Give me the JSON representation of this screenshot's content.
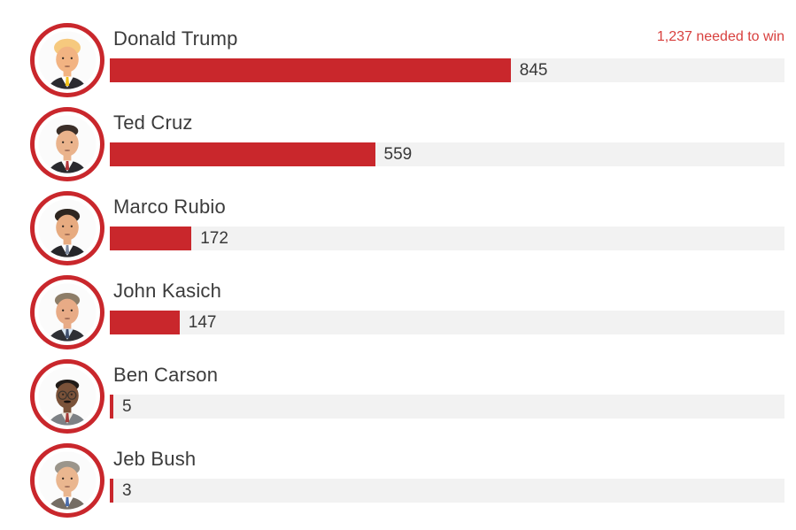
{
  "colors": {
    "background": "#ffffff",
    "bar": "#c9272c",
    "track": "#f2f2f2",
    "ring": "#c9272c",
    "name_text": "#3b3b3b",
    "value_text": "#383838",
    "annotation_text": "#d8403e"
  },
  "annotation": {
    "label": "1,237 needed to win"
  },
  "chart_data": {
    "type": "bar",
    "orientation": "horizontal",
    "title": "",
    "categories": [
      "Donald Trump",
      "Ted Cruz",
      "Marco Rubio",
      "John Kasich",
      "Ben Carson",
      "Jeb Bush"
    ],
    "values": [
      845,
      559,
      172,
      147,
      5,
      3
    ],
    "value_labels": [
      "845",
      "559",
      "172",
      "147",
      "5",
      "3"
    ],
    "annotation": "1,237 needed to win",
    "threshold_to_win": 1237,
    "xlim": [
      0,
      1422
    ],
    "grid": false,
    "legend": "none",
    "bar_color": "#c9272c",
    "track_color": "#f2f2f2"
  },
  "rows": [
    {
      "name": "Donald Trump",
      "value": 845,
      "value_label": "845",
      "avatar": {
        "icon": "avatar-donald-trump",
        "skin": "#f2b382",
        "hair": "#f6c97e",
        "hair_style": "combover",
        "suit": "#2b2b30",
        "shirt": "#ffffff",
        "tie": "#f2c21a",
        "glasses": false,
        "mustache": false
      }
    },
    {
      "name": "Ted Cruz",
      "value": 559,
      "value_label": "559",
      "avatar": {
        "icon": "avatar-ted-cruz",
        "skin": "#eab38c",
        "hair": "#3a2e28",
        "hair_style": "receding",
        "suit": "#2a2a2e",
        "shirt": "#ffffff",
        "tie": "#b5373c",
        "glasses": false,
        "mustache": false
      }
    },
    {
      "name": "Marco Rubio",
      "value": 172,
      "value_label": "172",
      "avatar": {
        "icon": "avatar-marco-rubio",
        "skin": "#e7ab80",
        "hair": "#2e2620",
        "hair_style": "full",
        "suit": "#26262a",
        "shirt": "#ffffff",
        "tie": "#7d8aa0",
        "glasses": false,
        "mustache": false
      }
    },
    {
      "name": "John Kasich",
      "value": 147,
      "value_label": "147",
      "avatar": {
        "icon": "avatar-john-kasich",
        "skin": "#e8ab86",
        "hair": "#8d7d68",
        "hair_style": "full",
        "suit": "#2f3035",
        "shirt": "#d9e6f2",
        "tie": "#3f4f6e",
        "glasses": false,
        "mustache": false
      }
    },
    {
      "name": "Ben Carson",
      "value": 5,
      "value_label": "5",
      "avatar": {
        "icon": "avatar-ben-carson",
        "skin": "#7a5239",
        "hair": "#201b18",
        "hair_style": "short",
        "suit": "#7d8185",
        "shirt": "#ece8df",
        "tie": "#a63c39",
        "glasses": true,
        "mustache": true
      }
    },
    {
      "name": "Jeb Bush",
      "value": 3,
      "value_label": "3",
      "avatar": {
        "icon": "avatar-jeb-bush",
        "skin": "#eab68f",
        "hair": "#9b958b",
        "hair_style": "full",
        "suit": "#756d64",
        "shirt": "#ffffff",
        "tie": "#4a6cab",
        "glasses": false,
        "mustache": false
      }
    }
  ]
}
